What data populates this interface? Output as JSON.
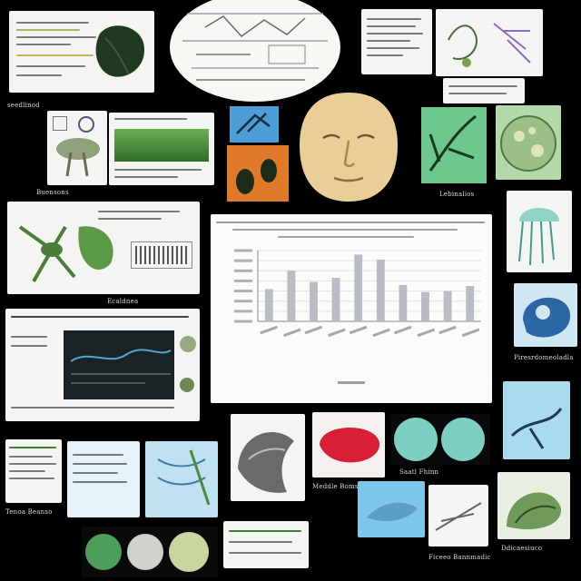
{
  "captions": {
    "c1": "seedlinod",
    "c2": "Buensons",
    "c3": "Lebinalios",
    "c4": "Ecaldnea",
    "c5": "Tenoa Beanso",
    "c6": "Meddle Bomsre",
    "c7": "Saatl Fhinn",
    "c8": "Piresrdomeoladla",
    "c9": "Ficeeo Bannmadic",
    "c10": "Ddicaesiuco"
  },
  "chart_data": {
    "type": "bar",
    "categories": [
      "",
      "",
      "",
      "",
      "",
      "",
      "",
      "",
      "",
      ""
    ],
    "values": [
      32,
      50,
      39,
      43,
      66,
      61,
      36,
      29,
      30,
      35
    ],
    "ylim": [
      0,
      70
    ],
    "grid": true
  },
  "colors": {
    "background": "#000000",
    "card": "#f4f5f2",
    "bar": "#b9bcc2",
    "face": "#e9cf97",
    "blue_card": "#4b9fd6",
    "orange_card": "#e07a2a",
    "red_specimen": "#d81f35",
    "green_leaf": "#3f7d2f"
  }
}
